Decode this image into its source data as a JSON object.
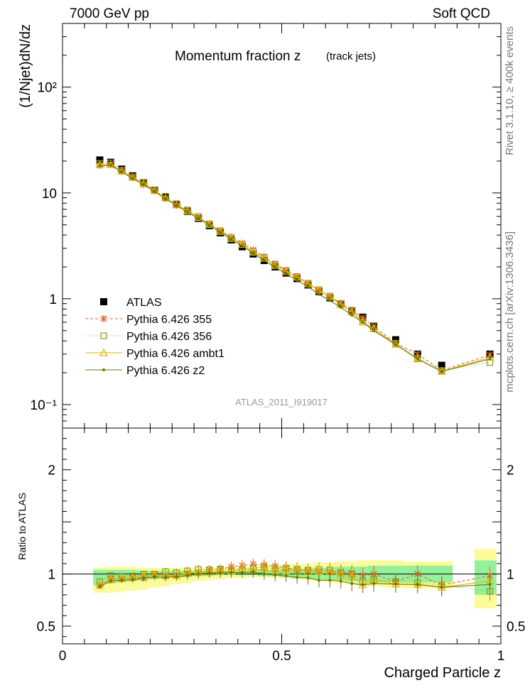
{
  "header": {
    "energy_label": "7000 GeV pp",
    "category_label": "Soft QCD"
  },
  "side": {
    "rivet_label": "Rivet 3.1.10, ≥ 400k events",
    "source_label": "mcplots.cern.ch [arXiv:1306.3436]"
  },
  "chart_data": [
    {
      "type": "scatter",
      "title": "Momentum fraction z",
      "subtitle": "(track jets)",
      "analysis_label": "ATLAS_2011_I919017",
      "xlabel": "Charged Particle z",
      "ylabel": "(1/Njet)dN/dz",
      "yscale": "log",
      "xlim": [
        0,
        1.0
      ],
      "ylim": [
        0.06,
        400
      ],
      "y_ticks": [
        {
          "value": 0.1,
          "label": "10⁻¹"
        },
        {
          "value": 1,
          "label": "1"
        },
        {
          "value": 10,
          "label": "10"
        },
        {
          "value": 100,
          "label": "10²"
        }
      ],
      "x": [
        0.085,
        0.11,
        0.135,
        0.16,
        0.185,
        0.21,
        0.235,
        0.26,
        0.285,
        0.31,
        0.335,
        0.36,
        0.385,
        0.41,
        0.435,
        0.46,
        0.485,
        0.51,
        0.535,
        0.56,
        0.585,
        0.61,
        0.635,
        0.66,
        0.685,
        0.71,
        0.76,
        0.81,
        0.865,
        0.975
      ],
      "series": [
        {
          "name": "ATLAS",
          "style": "data",
          "color": "#000000",
          "values": [
            20.5,
            19.5,
            16.8,
            14.5,
            12.5,
            10.6,
            9.1,
            7.8,
            6.7,
            5.75,
            4.9,
            4.2,
            3.6,
            3.1,
            2.65,
            2.3,
            2.0,
            1.75,
            1.55,
            1.35,
            1.17,
            1.02,
            0.89,
            0.77,
            0.67,
            0.55,
            0.41,
            0.3,
            0.235,
            0.3
          ]
        },
        {
          "name": "Pythia 6.426 355",
          "style": "star",
          "color": "#e8601c",
          "values": [
            18.2,
            18.7,
            16.0,
            14.0,
            12.0,
            10.5,
            8.9,
            7.65,
            6.75,
            5.8,
            5.1,
            4.4,
            3.85,
            3.35,
            2.9,
            2.5,
            2.15,
            1.85,
            1.62,
            1.4,
            1.2,
            1.04,
            0.91,
            0.78,
            0.66,
            0.55,
            0.38,
            0.3,
            0.21,
            0.295
          ]
        },
        {
          "name": "Pythia 6.426 356",
          "style": "square",
          "color": "#8c9a1f",
          "values": [
            19.0,
            19.2,
            16.4,
            14.2,
            12.5,
            10.6,
            9.3,
            7.9,
            6.9,
            6.0,
            5.1,
            4.4,
            3.75,
            3.25,
            2.8,
            2.45,
            2.1,
            1.85,
            1.62,
            1.4,
            1.22,
            1.06,
            0.9,
            0.77,
            0.62,
            0.52,
            0.38,
            0.275,
            0.21,
            0.25
          ]
        },
        {
          "name": "Pythia 6.426 ambt1",
          "style": "triangle",
          "color": "#e8b100",
          "values": [
            18.6,
            18.4,
            16.1,
            14.0,
            12.3,
            10.5,
            8.95,
            7.7,
            6.75,
            5.85,
            5.0,
            4.3,
            3.7,
            3.25,
            2.75,
            2.4,
            2.05,
            1.8,
            1.6,
            1.38,
            1.2,
            1.04,
            0.88,
            0.75,
            0.6,
            0.52,
            0.37,
            0.27,
            0.205,
            0.28
          ]
        },
        {
          "name": "Pythia 6.426 z2",
          "style": "dot",
          "color": "#6b7a00",
          "values": [
            18.0,
            18.2,
            15.8,
            13.7,
            12.0,
            10.3,
            8.8,
            7.6,
            6.6,
            5.75,
            4.95,
            4.25,
            3.65,
            3.15,
            2.7,
            2.3,
            1.98,
            1.72,
            1.5,
            1.3,
            1.1,
            0.96,
            0.83,
            0.7,
            0.6,
            0.5,
            0.37,
            0.27,
            0.205,
            0.27
          ]
        }
      ]
    },
    {
      "type": "scatter",
      "ylabel": "Ratio to ATLAS",
      "xlabel": "Charged Particle z",
      "xlim": [
        0,
        1.0
      ],
      "ylim": [
        0.33,
        2.4
      ],
      "y_ticks": [
        {
          "value": 0.5,
          "label": "0.5"
        },
        {
          "value": 1,
          "label": "1"
        },
        {
          "value": 2,
          "label": "2"
        }
      ],
      "x_ticks": [
        {
          "value": 0,
          "label": "0"
        },
        {
          "value": 0.5,
          "label": "0.5"
        },
        {
          "value": 1,
          "label": "1"
        }
      ],
      "bands": {
        "edges": [
          0.07,
          0.095,
          0.12,
          0.145,
          0.17,
          0.195,
          0.22,
          0.245,
          0.27,
          0.295,
          0.32,
          0.345,
          0.37,
          0.395,
          0.42,
          0.445,
          0.47,
          0.495,
          0.52,
          0.545,
          0.57,
          0.595,
          0.62,
          0.645,
          0.67,
          0.695,
          0.73,
          0.78,
          0.84,
          0.89,
          0.94,
          0.99
        ],
        "yellow_low": [
          0.82,
          0.82,
          0.83,
          0.84,
          0.85,
          0.87,
          0.88,
          0.9,
          0.91,
          0.93,
          0.94,
          0.95,
          0.96,
          0.96,
          0.97,
          0.97,
          0.96,
          0.96,
          0.95,
          0.94,
          0.93,
          0.92,
          0.91,
          0.9,
          0.89,
          0.88,
          0.87,
          0.86,
          0.86,
          null,
          0.67
        ],
        "yellow_high": [
          1.06,
          1.07,
          1.07,
          1.07,
          1.06,
          1.06,
          1.06,
          1.06,
          1.06,
          1.06,
          1.06,
          1.06,
          1.06,
          1.06,
          1.07,
          1.08,
          1.09,
          1.09,
          1.1,
          1.1,
          1.11,
          1.11,
          1.12,
          1.12,
          1.13,
          1.13,
          1.13,
          1.12,
          1.12,
          null,
          1.24
        ],
        "green_low": [
          0.89,
          0.91,
          0.92,
          0.93,
          0.94,
          0.95,
          0.96,
          0.97,
          0.97,
          0.98,
          0.98,
          0.99,
          0.99,
          0.99,
          0.99,
          0.98,
          0.98,
          0.97,
          0.96,
          0.96,
          0.95,
          0.94,
          0.94,
          0.93,
          0.93,
          0.92,
          0.92,
          0.92,
          0.92,
          null,
          0.8
        ],
        "green_high": [
          1.04,
          1.04,
          1.04,
          1.04,
          1.03,
          1.03,
          1.03,
          1.03,
          1.03,
          1.03,
          1.03,
          1.03,
          1.03,
          1.03,
          1.03,
          1.04,
          1.04,
          1.05,
          1.05,
          1.05,
          1.06,
          1.06,
          1.07,
          1.07,
          1.07,
          1.08,
          1.08,
          1.08,
          1.08,
          null,
          1.13
        ]
      }
    }
  ]
}
